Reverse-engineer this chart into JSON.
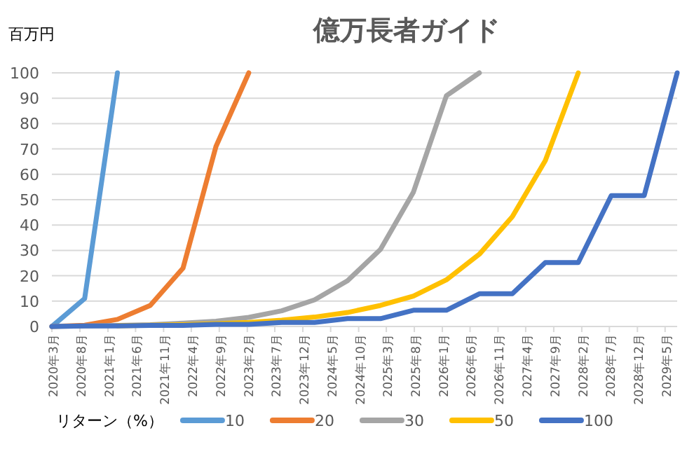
{
  "chart_data": {
    "type": "line",
    "title": "億万長者ガイド",
    "ylabel": "百万円",
    "legend_title": "リターン（%）",
    "legend": "bottom",
    "grid": "y",
    "x": [
      "2020-03-01",
      "2020-08-27",
      "2021-02-22",
      "2021-08-20",
      "2022-02-15",
      "2022-08-14",
      "2023-02-09",
      "2023-08-08",
      "2024-02-03",
      "2024-08-01",
      "2025-01-28",
      "2025-07-27",
      "2026-01-23",
      "2026-07-22",
      "2027-01-18",
      "2027-07-17",
      "2028-01-13",
      "2028-07-11",
      "2029-01-07",
      "2029-07-06"
    ],
    "xlim": [
      "2020-03-01",
      "2029-07-06"
    ],
    "xticks": [
      {
        "value": "2020-03",
        "label": "2020年3月"
      },
      {
        "value": "2020-08",
        "label": "2020年8月"
      },
      {
        "value": "2021-01",
        "label": "2021年1月"
      },
      {
        "value": "2021-06",
        "label": "2021年6月"
      },
      {
        "value": "2021-11",
        "label": "2021年11月"
      },
      {
        "value": "2022-04",
        "label": "2022年4月"
      },
      {
        "value": "2022-09",
        "label": "2022年9月"
      },
      {
        "value": "2023-02",
        "label": "2023年2月"
      },
      {
        "value": "2023-07",
        "label": "2023年7月"
      },
      {
        "value": "2023-12",
        "label": "2023年12月"
      },
      {
        "value": "2024-05",
        "label": "2024年5月"
      },
      {
        "value": "2024-10",
        "label": "2024年10月"
      },
      {
        "value": "2025-03",
        "label": "2025年3月"
      },
      {
        "value": "2025-08",
        "label": "2025年8月"
      },
      {
        "value": "2026-01",
        "label": "2026年1月"
      },
      {
        "value": "2026-06",
        "label": "2026年6月"
      },
      {
        "value": "2026-11",
        "label": "2026年11月"
      },
      {
        "value": "2027-04",
        "label": "2027年4月"
      },
      {
        "value": "2027-09",
        "label": "2027年9月"
      },
      {
        "value": "2028-02",
        "label": "2028年2月"
      },
      {
        "value": "2028-07",
        "label": "2028年7月"
      },
      {
        "value": "2028-12",
        "label": "2028年12月"
      },
      {
        "value": "2029-05",
        "label": "2029年5月"
      }
    ],
    "ylim": [
      0,
      100
    ],
    "yticks": [
      0,
      10,
      20,
      30,
      40,
      50,
      60,
      70,
      80,
      90,
      100
    ],
    "series": [
      {
        "name": "10",
        "color": "#5b9bd5",
        "values": [
          0,
          11,
          100,
          null,
          null,
          null,
          null,
          null,
          null,
          null,
          null,
          null,
          null,
          null,
          null,
          null,
          null,
          null,
          null,
          null
        ]
      },
      {
        "name": "20",
        "color": "#ed7d31",
        "values": [
          0,
          0.5,
          2.8,
          8.3,
          23,
          71,
          100,
          null,
          null,
          null,
          null,
          null,
          null,
          null,
          null,
          null,
          null,
          null,
          null,
          null
        ]
      },
      {
        "name": "30",
        "color": "#a5a5a5",
        "values": [
          0,
          0.2,
          0.4,
          0.7,
          1.3,
          2.1,
          3.6,
          6.2,
          10.5,
          18,
          30.4,
          53,
          91,
          100,
          null,
          null,
          null,
          null,
          null,
          null
        ]
      },
      {
        "name": "50",
        "color": "#ffc000",
        "values": [
          null,
          null,
          0.3,
          0.5,
          0.7,
          1.1,
          1.6,
          2.5,
          3.7,
          5.5,
          8.3,
          12,
          18.4,
          28.5,
          43.3,
          65.4,
          100,
          null,
          null,
          null
        ]
      },
      {
        "name": "100",
        "color": "#4472c4",
        "values": [
          0,
          0.2,
          0.2,
          0.4,
          0.4,
          0.8,
          0.8,
          1.6,
          1.6,
          3.1,
          3.1,
          6.4,
          6.4,
          12.9,
          12.9,
          25.2,
          25.2,
          51.6,
          51.6,
          100
        ]
      }
    ]
  }
}
